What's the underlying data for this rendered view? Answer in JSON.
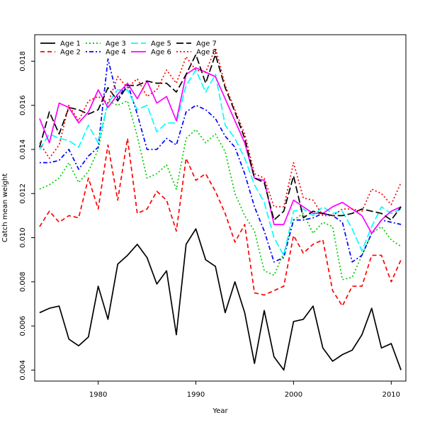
{
  "chart_data": {
    "type": "line",
    "title": "",
    "xlabel": "Year",
    "ylabel": "Catch mean weight",
    "xlim": [
      1973.5,
      2011.5
    ],
    "ylim": [
      0.0035,
      0.0192
    ],
    "x_ticks": [
      1980,
      1990,
      2000,
      2010
    ],
    "y_ticks": [
      0.004,
      0.006,
      0.008,
      0.01,
      0.012,
      0.014,
      0.016,
      0.018
    ],
    "y_tick_labels": [
      "0.004",
      "0.006",
      "0.008",
      "0.010",
      "0.012",
      "0.014",
      "0.016",
      "0.018"
    ],
    "grid": false,
    "legend_position": "top-left",
    "x": [
      1974,
      1975,
      1976,
      1977,
      1978,
      1979,
      1980,
      1981,
      1982,
      1983,
      1984,
      1985,
      1986,
      1987,
      1988,
      1989,
      1990,
      1991,
      1992,
      1993,
      1994,
      1995,
      1996,
      1997,
      1998,
      1999,
      2000,
      2001,
      2002,
      2003,
      2004,
      2005,
      2006,
      2007,
      2008,
      2009,
      2010,
      2011
    ],
    "series": [
      {
        "name": "Age 1",
        "color": "#000000",
        "dash": "solid",
        "values": [
          0.0066,
          0.0068,
          0.0069,
          0.0054,
          0.0051,
          0.0055,
          0.0078,
          0.0063,
          0.0088,
          0.0092,
          0.0097,
          0.0091,
          0.0079,
          0.0085,
          0.0056,
          0.0097,
          0.0104,
          0.009,
          0.0087,
          0.0066,
          0.008,
          0.0066,
          0.0043,
          0.0067,
          0.0046,
          0.004,
          0.0062,
          0.0063,
          0.0069,
          0.005,
          0.0044,
          0.0047,
          0.0049,
          0.0056,
          0.0068,
          0.005,
          0.0052,
          0.004
        ]
      },
      {
        "name": "Age 2",
        "color": "#ff0000",
        "dash": "dashed",
        "values": [
          0.0105,
          0.0112,
          0.0107,
          0.011,
          0.0109,
          0.0127,
          0.0113,
          0.0142,
          0.0117,
          0.0145,
          0.0111,
          0.0113,
          0.0121,
          0.0117,
          0.0103,
          0.0136,
          0.0126,
          0.0129,
          0.0121,
          0.0111,
          0.0098,
          0.0106,
          0.0075,
          0.0074,
          0.0076,
          0.0078,
          0.0101,
          0.0093,
          0.0097,
          0.0099,
          0.0076,
          0.0069,
          0.0078,
          0.0078,
          0.0092,
          0.0092,
          0.008,
          0.009
        ]
      },
      {
        "name": "Age 3",
        "color": "#00cd00",
        "dash": "dotted",
        "values": [
          0.0122,
          0.0124,
          0.0127,
          0.0134,
          0.0125,
          0.013,
          0.014,
          0.0162,
          0.016,
          0.0162,
          0.0146,
          0.0127,
          0.0129,
          0.0133,
          0.0122,
          0.0145,
          0.0149,
          0.0143,
          0.0147,
          0.0139,
          0.012,
          0.011,
          0.0103,
          0.0085,
          0.0083,
          0.0093,
          0.0108,
          0.0111,
          0.0102,
          0.0107,
          0.0105,
          0.0081,
          0.0082,
          0.0092,
          0.0102,
          0.0105,
          0.0099,
          0.0096
        ]
      },
      {
        "name": "Age 4",
        "color": "#0000ff",
        "dash": "dashdot",
        "values": [
          0.0134,
          0.0134,
          0.0135,
          0.014,
          0.0131,
          0.0137,
          0.0141,
          0.0181,
          0.0163,
          0.017,
          0.0156,
          0.014,
          0.014,
          0.0145,
          0.0142,
          0.0157,
          0.016,
          0.0158,
          0.0154,
          0.0146,
          0.0141,
          0.0129,
          0.0114,
          0.0103,
          0.0089,
          0.0091,
          0.0108,
          0.0108,
          0.0109,
          0.0111,
          0.011,
          0.0107,
          0.0089,
          0.0092,
          0.0102,
          0.0108,
          0.0107,
          0.0106
        ]
      },
      {
        "name": "Age 5",
        "color": "#00ffff",
        "dash": "longdash",
        "values": [
          0.014,
          0.0147,
          0.0145,
          0.0144,
          0.0141,
          0.0151,
          0.0143,
          0.0161,
          0.0167,
          0.0167,
          0.0158,
          0.016,
          0.0148,
          0.0152,
          0.0152,
          0.0169,
          0.0176,
          0.0166,
          0.0174,
          0.0151,
          0.0145,
          0.0136,
          0.0124,
          0.0116,
          0.01,
          0.0092,
          0.0112,
          0.0113,
          0.011,
          0.0114,
          0.0111,
          0.0112,
          0.0104,
          0.0094,
          0.0105,
          0.0114,
          0.0111,
          0.0113
        ]
      },
      {
        "name": "Age 6",
        "color": "#ff00ff",
        "dash": "solid",
        "values": [
          0.0154,
          0.0143,
          0.0161,
          0.0159,
          0.0152,
          0.0157,
          0.0167,
          0.0159,
          0.0165,
          0.017,
          0.0163,
          0.0171,
          0.0161,
          0.0164,
          0.0153,
          0.0174,
          0.0177,
          0.0175,
          0.0173,
          0.0163,
          0.0153,
          0.0143,
          0.0127,
          0.0126,
          0.0106,
          0.0106,
          0.0117,
          0.0114,
          0.0111,
          0.0111,
          0.0114,
          0.0116,
          0.0113,
          0.011,
          0.0102,
          0.0108,
          0.0112,
          0.0114
        ]
      },
      {
        "name": "Age 7",
        "color": "#000000",
        "dash": "longdash",
        "values": [
          0.0141,
          0.0157,
          0.0147,
          0.0159,
          0.0158,
          0.0156,
          0.0158,
          0.0168,
          0.0162,
          0.0169,
          0.0169,
          0.0171,
          0.017,
          0.017,
          0.0166,
          0.0174,
          0.0183,
          0.017,
          0.0183,
          0.0168,
          0.0157,
          0.0145,
          0.0127,
          0.0125,
          0.0108,
          0.0112,
          0.0128,
          0.0109,
          0.0112,
          0.0111,
          0.011,
          0.011,
          0.0111,
          0.0113,
          0.0112,
          0.0111,
          0.0108,
          0.0114
        ]
      },
      {
        "name": "Age 8",
        "color": "#ff0000",
        "dash": "dotted",
        "values": [
          0.0143,
          0.0136,
          0.0142,
          0.016,
          0.0153,
          0.0162,
          0.0164,
          0.0161,
          0.0173,
          0.0168,
          0.0172,
          0.0164,
          0.0167,
          0.0176,
          0.017,
          0.0182,
          0.0176,
          0.0175,
          0.0186,
          0.0169,
          0.0158,
          0.0147,
          0.0129,
          0.0127,
          0.0114,
          0.0114,
          0.0134,
          0.0118,
          0.0117,
          0.011,
          0.011,
          0.0113,
          0.0113,
          0.0112,
          0.0122,
          0.012,
          0.0115,
          0.0125
        ]
      }
    ]
  }
}
